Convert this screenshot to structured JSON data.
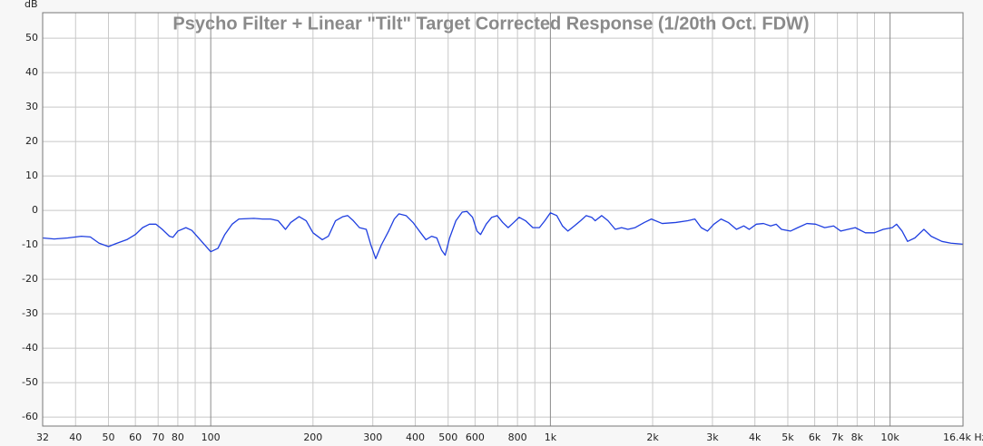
{
  "chart_data": {
    "type": "line",
    "title": "Psycho Filter + Linear \"Tilt\" Target Corrected Response (1/20th Oct. FDW)",
    "y_label": "dB",
    "xscale": "log",
    "grid": true,
    "color": "#1f3fe0",
    "xlim": [
      32,
      16400
    ],
    "ylim": [
      -62.6,
      57.4
    ],
    "yticks": [
      -60,
      -50,
      -40,
      -30,
      -20,
      -10,
      0,
      10,
      20,
      30,
      40,
      50
    ],
    "xticks": [
      32,
      40,
      50,
      60,
      70,
      80,
      100,
      200,
      300,
      400,
      500,
      600,
      800,
      {
        "value": 1000,
        "label": "1k"
      },
      {
        "value": 2000,
        "label": "2k"
      },
      {
        "value": 3000,
        "label": "3k"
      },
      {
        "value": 4000,
        "label": "4k"
      },
      {
        "value": 5000,
        "label": "5k"
      },
      {
        "value": 6000,
        "label": "6k"
      },
      {
        "value": 7000,
        "label": "7k"
      },
      {
        "value": 8000,
        "label": "8k"
      },
      {
        "value": 10000,
        "label": "10k"
      },
      {
        "value": 16400,
        "label": "16.4k Hz"
      }
    ],
    "xminorticks": [
      90,
      700,
      900,
      9000
    ],
    "x": [
      32,
      34.6,
      37.9,
      41.6,
      44.2,
      46.9,
      50,
      53,
      56.6,
      60,
      63,
      66,
      69,
      72,
      75.6,
      77.4,
      80,
      84.5,
      88,
      94,
      100,
      105,
      110,
      115.6,
      121,
      134,
      142,
      150,
      158,
      166,
      172,
      182,
      191,
      200,
      213,
      222,
      233,
      245,
      253,
      263,
      274,
      287,
      296,
      306,
      318,
      334,
      347,
      358,
      376,
      394,
      415,
      430,
      447,
      463,
      478,
      490,
      505,
      527,
      550,
      568,
      590,
      608,
      623,
      647,
      672,
      697,
      724,
      751,
      780,
      809,
      845,
      888,
      928,
      963,
      1000,
      1044,
      1085,
      1126,
      1176,
      1227,
      1275,
      1323,
      1355,
      1416,
      1478,
      1552,
      1620,
      1691,
      1776,
      1890,
      1983,
      2134,
      2340,
      2536,
      2663,
      2780,
      2900,
      3030,
      3180,
      3340,
      3530,
      3710,
      3850,
      4040,
      4240,
      4450,
      4620,
      4790,
      5090,
      5350,
      5690,
      6040,
      6420,
      6820,
      7160,
      7520,
      7900,
      8460,
      8990,
      9550,
      10150,
      10450,
      10850,
      11260,
      11830,
      12580,
      13210,
      14210,
      15110,
      16400
    ],
    "values": [
      -8,
      -8.3,
      -8,
      -7.5,
      -7.7,
      -9.5,
      -10.5,
      -9.5,
      -8.5,
      -7,
      -5,
      -4,
      -4,
      -5.5,
      -7.5,
      -7.8,
      -6,
      -5,
      -5.8,
      -9,
      -12,
      -11,
      -7,
      -4,
      -2.5,
      -2.3,
      -2.5,
      -2.5,
      -3,
      -5.5,
      -3.5,
      -1.8,
      -3,
      -6.5,
      -8.5,
      -7.5,
      -3,
      -1.8,
      -1.5,
      -3,
      -5,
      -5.5,
      -10,
      -14,
      -10,
      -6,
      -2.5,
      -1,
      -1.5,
      -3.5,
      -6.5,
      -8.5,
      -7.5,
      -8,
      -11.5,
      -13,
      -8,
      -3,
      -0.5,
      -0.3,
      -2,
      -6,
      -7,
      -4,
      -2,
      -1.5,
      -3.5,
      -5,
      -3.5,
      -2,
      -3,
      -5,
      -5,
      -3,
      -0.7,
      -1.5,
      -4.5,
      -6,
      -4.5,
      -3,
      -1.5,
      -2,
      -3,
      -1.5,
      -3,
      -5.5,
      -5,
      -5.5,
      -5,
      -3.5,
      -2.5,
      -3.8,
      -3.5,
      -3,
      -2.5,
      -5,
      -6,
      -4,
      -2.5,
      -3.5,
      -5.5,
      -4.5,
      -5.5,
      -4,
      -3.8,
      -4.5,
      -4,
      -5.5,
      -6,
      -5,
      -3.8,
      -4,
      -5,
      -4.5,
      -6,
      -5.5,
      -5,
      -6.5,
      -6.5,
      -5.5,
      -5,
      -4,
      -6,
      -9,
      -8,
      -5.5,
      -7.5,
      -9,
      -9.5,
      -9.8
    ]
  }
}
